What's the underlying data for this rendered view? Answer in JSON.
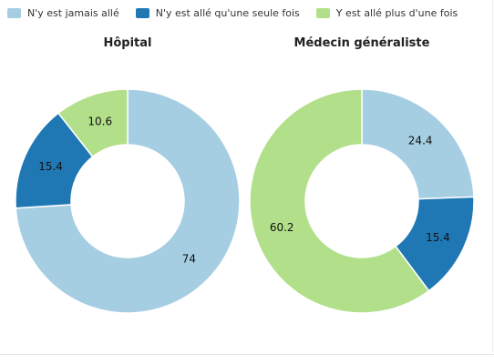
{
  "legend": [
    {
      "label": "N'y est jamais allé",
      "color": "#a6cee3"
    },
    {
      "label": "N'y est allé qu'une seule fois",
      "color": "#1f78b4"
    },
    {
      "label": "Y est allé plus d'une fois",
      "color": "#b2df8a"
    }
  ],
  "chart_data": [
    {
      "type": "pie",
      "donut": true,
      "title": "Hôpital",
      "slices": [
        {
          "label": "N'y est jamais allé",
          "value": 74,
          "display": "74",
          "color": "#a6cee3"
        },
        {
          "label": "N'y est allé qu'une seule fois",
          "value": 15.4,
          "display": "15.4",
          "color": "#1f78b4"
        },
        {
          "label": "Y est allé plus d'une fois",
          "value": 10.6,
          "display": "10.6",
          "color": "#b2df8a"
        }
      ]
    },
    {
      "type": "pie",
      "donut": true,
      "title": "Médecin généraliste",
      "slices": [
        {
          "label": "N'y est jamais allé",
          "value": 24.4,
          "display": "24.4",
          "color": "#a6cee3"
        },
        {
          "label": "N'y est allé qu'une seule fois",
          "value": 15.4,
          "display": "15.4",
          "color": "#1f78b4"
        },
        {
          "label": "Y est allé plus d'une fois",
          "value": 60.2,
          "display": "60.2",
          "color": "#b2df8a"
        }
      ]
    }
  ]
}
